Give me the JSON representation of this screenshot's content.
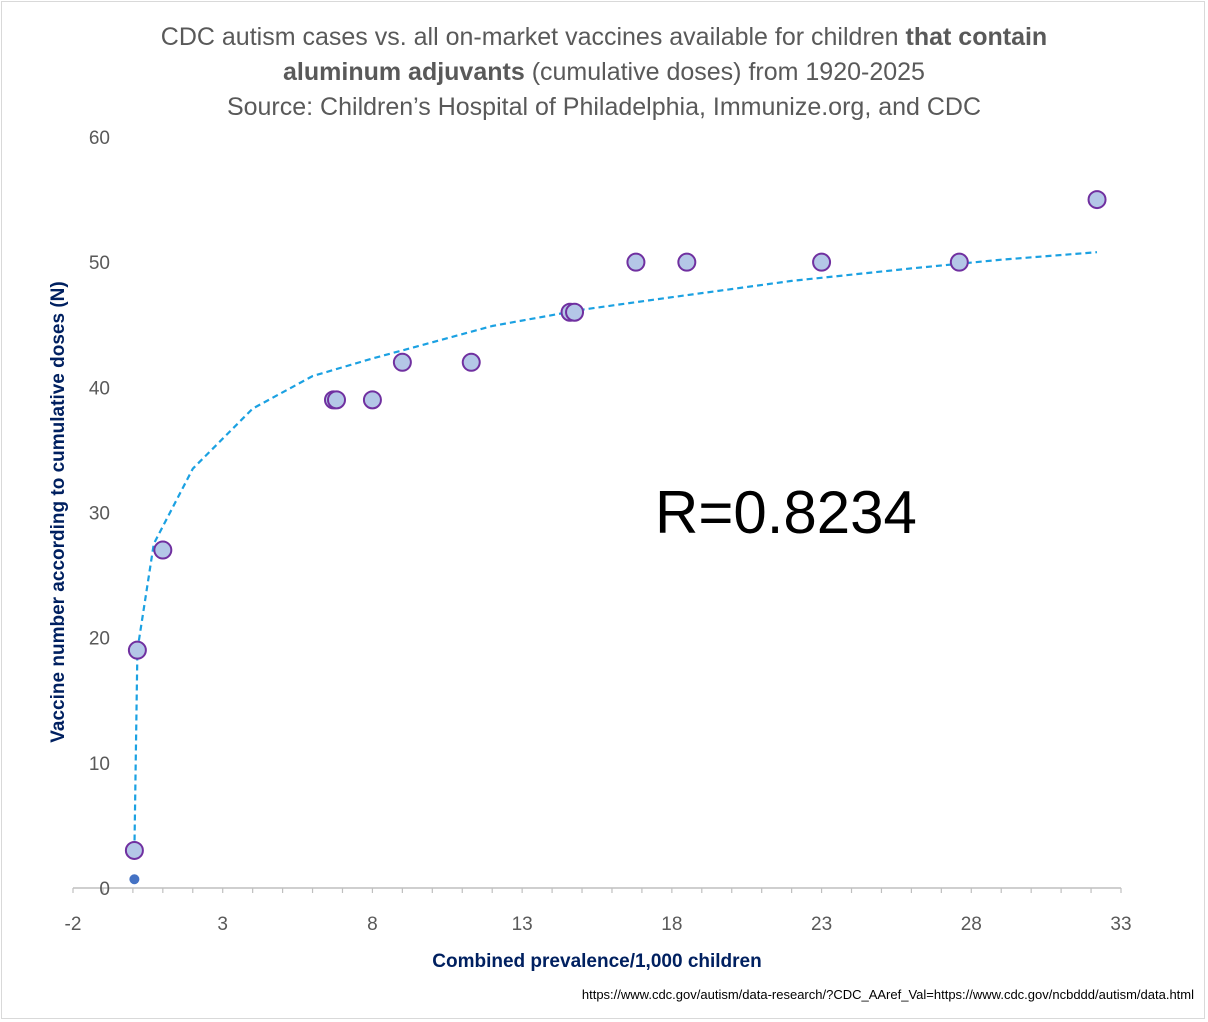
{
  "title": {
    "line1_regular": "CDC autism cases vs. all on-market vaccines available for children ",
    "line1_bold": "that contain",
    "line2_bold": "aluminum adjuvants",
    "line2_regular": " (cumulative doses) from 1920-2025",
    "line3": "Source: Children’s Hospital of Philadelphia, Immunize.org, and CDC"
  },
  "annotation": "R=0.8234",
  "source_url": "https://www.cdc.gov/autism/data-research/?CDC_AAref_Val=https://www.cdc.gov/ncbddd/autism/data.html",
  "colors": {
    "marker_fill": "#b4c7e7",
    "marker_stroke": "#7030a0",
    "trendline": "#1ba1e2",
    "extra_point": "#4472c4",
    "axis_title": "#002060",
    "tick_label": "#595959",
    "axis_line": "#bfbfbf"
  },
  "chart_data": {
    "type": "scatter",
    "title": "CDC autism cases vs. all on-market vaccines available for children that contain aluminum adjuvants (cumulative doses) from 1920-2025",
    "xlabel": "Combined prevalence/1,000 children",
    "ylabel": "Vaccine number according to cumulative doses (N)",
    "xlim": [
      -2,
      33
    ],
    "ylim": [
      0,
      60
    ],
    "x_ticks": [
      -2,
      3,
      8,
      13,
      18,
      23,
      28,
      33
    ],
    "y_ticks": [
      0,
      10,
      20,
      30,
      40,
      50,
      60
    ],
    "x_minor_step": 1,
    "grid": false,
    "legend": "none",
    "series": [
      {
        "points": [
          {
            "x": 0.05,
            "y": 3
          },
          {
            "x": 0.15,
            "y": 19
          },
          {
            "x": 1.0,
            "y": 27
          },
          {
            "x": 6.7,
            "y": 39
          },
          {
            "x": 6.8,
            "y": 39
          },
          {
            "x": 8.0,
            "y": 39
          },
          {
            "x": 9.0,
            "y": 42
          },
          {
            "x": 11.3,
            "y": 42
          },
          {
            "x": 14.6,
            "y": 46
          },
          {
            "x": 14.75,
            "y": 46
          },
          {
            "x": 16.8,
            "y": 50
          },
          {
            "x": 18.5,
            "y": 50
          },
          {
            "x": 23.0,
            "y": 50
          },
          {
            "x": 27.6,
            "y": 50
          },
          {
            "x": 32.2,
            "y": 55
          }
        ]
      },
      {
        "points": [
          {
            "x": 0.05,
            "y": 0.7
          }
        ]
      }
    ],
    "trendline": {
      "type": "logarithmic",
      "style": "dashed",
      "x_start": 0.05,
      "x_end": 32.2,
      "points": [
        {
          "x": 0.05,
          "y": 3
        },
        {
          "x": 0.15,
          "y": 19
        },
        {
          "x": 0.7,
          "y": 27.5
        },
        {
          "x": 2.0,
          "y": 33.5
        },
        {
          "x": 4.0,
          "y": 38.3
        },
        {
          "x": 6.0,
          "y": 40.9
        },
        {
          "x": 8.0,
          "y": 42.3
        },
        {
          "x": 10.0,
          "y": 43.6
        },
        {
          "x": 12.0,
          "y": 44.9
        },
        {
          "x": 15.0,
          "y": 46.2
        },
        {
          "x": 18.0,
          "y": 47.2
        },
        {
          "x": 22.0,
          "y": 48.5
        },
        {
          "x": 26.0,
          "y": 49.5
        },
        {
          "x": 29.0,
          "y": 50.2
        },
        {
          "x": 32.2,
          "y": 50.8
        }
      ]
    }
  }
}
